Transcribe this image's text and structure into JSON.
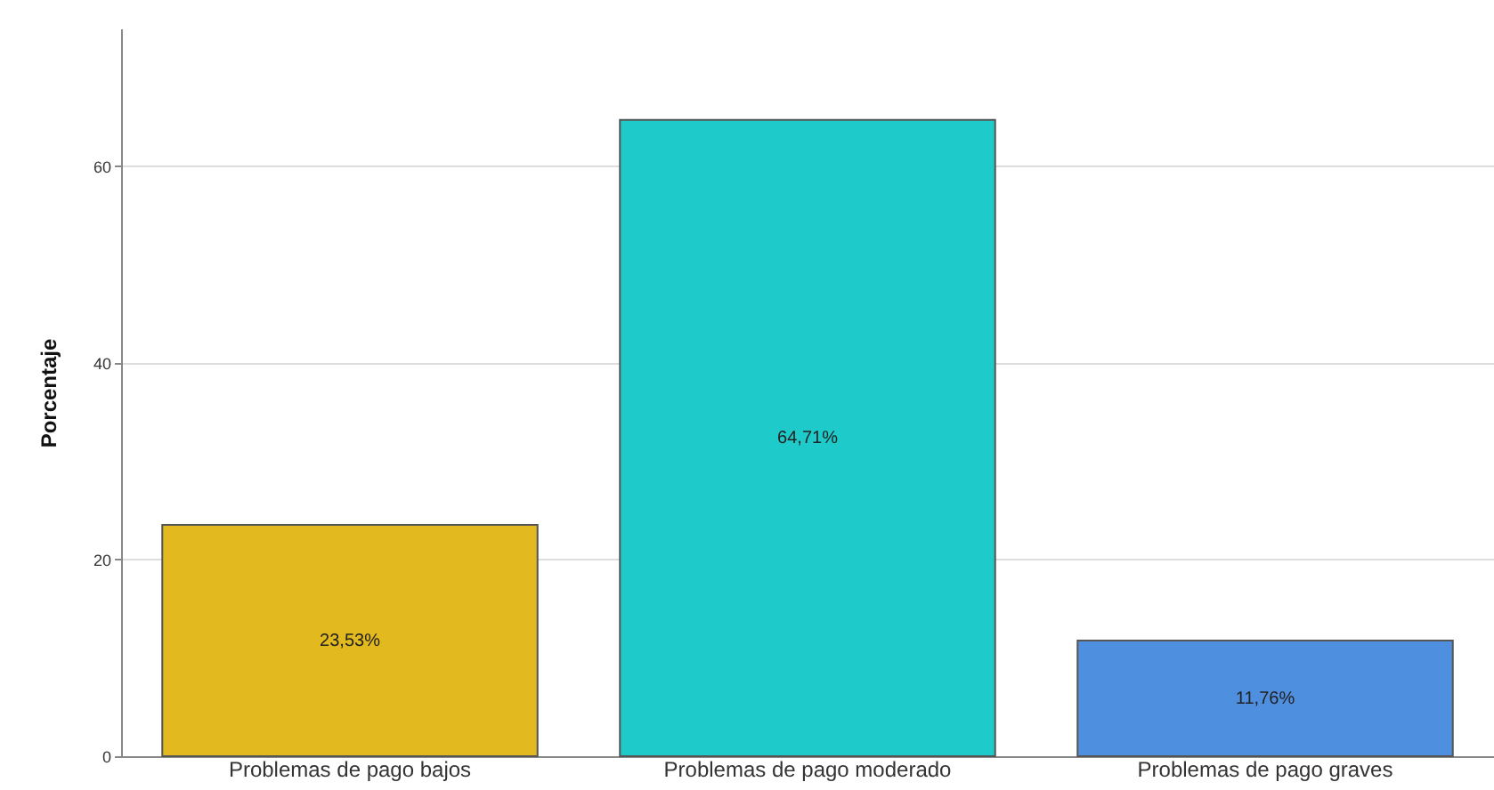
{
  "chart_data": {
    "type": "bar",
    "ylabel": "Porcentaje",
    "categories": [
      "Problemas de pago bajos",
      "Problemas de pago moderado",
      "Problemas de pago graves"
    ],
    "values": [
      23.53,
      64.71,
      11.76
    ],
    "colors": [
      "#e2b91e",
      "#1fcaca",
      "#4f8fdf"
    ],
    "value_labels": [
      "23,53%",
      "64,71%",
      "11,76%"
    ],
    "ylim": [
      0,
      74
    ],
    "yticks": [
      0,
      20,
      40,
      60
    ],
    "grid": "y",
    "legend": false
  }
}
